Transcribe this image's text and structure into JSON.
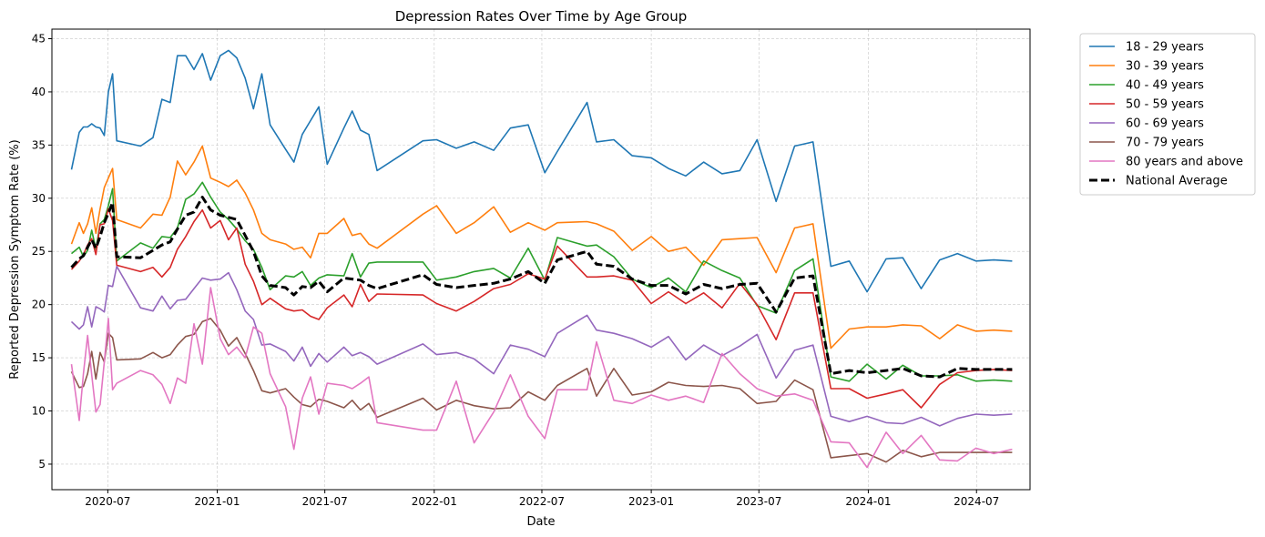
{
  "chart_data": {
    "type": "line",
    "title": "Depression Rates Over Time by Age Group",
    "xlabel": "Date",
    "ylabel": "Reported Depression Symptom Rate (%)",
    "xlim": [
      "2020-03-29",
      "2024-09-29"
    ],
    "ylim": [
      2.6,
      45.9
    ],
    "x_ticks": [
      "2020-07",
      "2021-01",
      "2021-07",
      "2022-01",
      "2022-07",
      "2023-01",
      "2023-07",
      "2024-01",
      "2024-07"
    ],
    "y_ticks": [
      5,
      10,
      15,
      20,
      25,
      30,
      35,
      40,
      45
    ],
    "grid": true,
    "legend_position": "outside-top-right",
    "x": [
      "2020-05-01",
      "2020-05-14",
      "2020-05-21",
      "2020-05-28",
      "2020-06-04",
      "2020-06-11",
      "2020-06-18",
      "2020-06-25",
      "2020-07-02",
      "2020-07-09",
      "2020-07-16",
      "2020-08-25",
      "2020-09-15",
      "2020-09-30",
      "2020-10-14",
      "2020-10-26",
      "2020-11-09",
      "2020-11-23",
      "2020-12-07",
      "2020-12-21",
      "2021-01-06",
      "2021-01-20",
      "2021-02-03",
      "2021-02-17",
      "2021-03-03",
      "2021-03-17",
      "2021-03-31",
      "2021-04-26",
      "2021-05-10",
      "2021-05-24",
      "2021-06-07",
      "2021-06-21",
      "2021-07-05",
      "2021-08-02",
      "2021-08-16",
      "2021-08-30",
      "2021-09-13",
      "2021-09-27",
      "2021-12-13",
      "2022-01-05",
      "2022-02-07",
      "2022-03-09",
      "2022-04-11",
      "2022-05-09",
      "2022-06-08",
      "2022-07-06",
      "2022-07-27",
      "2022-09-15",
      "2022-10-01",
      "2022-10-30",
      "2022-11-30",
      "2023-01-01",
      "2023-01-30",
      "2023-02-28",
      "2023-03-30",
      "2023-04-30",
      "2023-05-30",
      "2023-06-28",
      "2023-07-30",
      "2023-08-30",
      "2023-09-30",
      "2023-10-30",
      "2023-11-30",
      "2023-12-30",
      "2024-01-31",
      "2024-02-28",
      "2024-03-30",
      "2024-04-30",
      "2024-05-30",
      "2024-06-30",
      "2024-07-30",
      "2024-08-30"
    ],
    "series": [
      {
        "name": "18 - 29 years",
        "color": "#1f77b4",
        "dashed": false,
        "values": [
          32.7,
          36.2,
          36.7,
          36.7,
          37.0,
          36.7,
          36.6,
          35.9,
          40.0,
          41.7,
          35.4,
          34.9,
          35.7,
          39.3,
          39.0,
          43.4,
          43.4,
          42.1,
          43.6,
          41.1,
          43.4,
          43.9,
          43.2,
          41.3,
          38.4,
          41.7,
          36.9,
          34.6,
          33.4,
          36.0,
          37.3,
          38.6,
          33.2,
          36.6,
          38.2,
          36.4,
          36.0,
          32.6,
          35.4,
          35.5,
          34.7,
          35.3,
          34.5,
          36.6,
          36.9,
          32.4,
          34.4,
          39.0,
          35.3,
          35.5,
          34.0,
          33.8,
          32.8,
          32.1,
          33.4,
          32.3,
          32.6,
          35.5,
          29.7,
          34.9,
          35.3,
          23.6,
          24.1,
          21.2,
          24.3,
          24.4,
          21.5,
          24.2,
          24.8,
          24.1,
          24.2,
          24.1
        ]
      },
      {
        "name": "30 - 39 years",
        "color": "#ff7f0e",
        "dashed": false,
        "values": [
          25.7,
          27.7,
          26.7,
          27.6,
          29.1,
          26.7,
          29.0,
          31.0,
          31.9,
          32.8,
          28.0,
          27.2,
          28.5,
          28.4,
          30.1,
          33.5,
          32.2,
          33.4,
          34.9,
          31.9,
          31.5,
          31.1,
          31.7,
          30.5,
          28.9,
          26.7,
          26.1,
          25.7,
          25.2,
          25.4,
          24.4,
          26.7,
          26.7,
          28.1,
          26.5,
          26.7,
          25.7,
          25.3,
          28.5,
          29.3,
          26.7,
          27.7,
          29.2,
          26.8,
          27.7,
          27.0,
          27.7,
          27.8,
          27.6,
          26.9,
          25.1,
          26.4,
          25.0,
          25.4,
          23.7,
          26.1,
          26.2,
          26.3,
          23.0,
          27.2,
          27.6,
          15.9,
          17.7,
          17.9,
          17.9,
          18.1,
          18.0,
          16.8,
          18.1,
          17.5,
          17.6,
          17.5
        ]
      },
      {
        "name": "40 - 49 years",
        "color": "#2ca02c",
        "dashed": false,
        "values": [
          24.8,
          25.4,
          24.5,
          25.1,
          27.0,
          25.2,
          27.6,
          28.0,
          29.3,
          30.9,
          24.1,
          25.8,
          25.3,
          26.4,
          26.3,
          27.2,
          29.9,
          30.4,
          31.5,
          30.1,
          28.7,
          28.0,
          27.1,
          26.0,
          25.2,
          23.5,
          21.4,
          22.7,
          22.6,
          23.1,
          21.8,
          22.5,
          22.8,
          22.7,
          24.8,
          22.6,
          23.9,
          24.0,
          24.0,
          22.3,
          22.6,
          23.1,
          23.4,
          22.5,
          25.3,
          22.3,
          26.3,
          25.5,
          25.6,
          24.5,
          22.4,
          21.6,
          22.5,
          21.2,
          24.1,
          23.2,
          22.5,
          19.9,
          19.2,
          23.2,
          24.3,
          13.2,
          12.8,
          14.4,
          13.0,
          14.3,
          13.3,
          13.3,
          13.4,
          12.8,
          12.9,
          12.8
        ]
      },
      {
        "name": "50 - 59 years",
        "color": "#d62728",
        "dashed": false,
        "values": [
          23.3,
          24.1,
          24.7,
          25.6,
          26.2,
          24.7,
          27.5,
          27.6,
          29.0,
          27.9,
          23.7,
          23.1,
          23.5,
          22.6,
          23.5,
          25.2,
          26.4,
          27.8,
          28.9,
          27.2,
          27.9,
          26.1,
          27.2,
          23.8,
          22.2,
          20.0,
          20.6,
          19.6,
          19.4,
          19.5,
          18.9,
          18.6,
          19.7,
          20.9,
          19.8,
          21.9,
          20.3,
          21.0,
          20.9,
          20.1,
          19.4,
          20.3,
          21.5,
          21.9,
          22.9,
          22.4,
          25.5,
          22.6,
          22.6,
          22.7,
          22.3,
          20.1,
          21.2,
          20.1,
          21.1,
          19.7,
          22.0,
          20.0,
          16.7,
          21.1,
          21.1,
          12.1,
          12.1,
          11.2,
          11.6,
          12.0,
          10.3,
          12.5,
          13.6,
          13.8,
          13.9,
          13.8
        ]
      },
      {
        "name": "60 - 69 years",
        "color": "#9467bd",
        "dashed": false,
        "values": [
          18.4,
          17.7,
          18.1,
          19.8,
          17.9,
          19.8,
          19.6,
          19.3,
          21.8,
          21.7,
          23.6,
          19.7,
          19.4,
          20.8,
          19.6,
          20.4,
          20.5,
          21.5,
          22.5,
          22.3,
          22.4,
          23.0,
          21.4,
          19.4,
          18.6,
          16.2,
          16.3,
          15.6,
          14.7,
          16.0,
          14.2,
          15.4,
          14.6,
          16.0,
          15.2,
          15.5,
          15.1,
          14.4,
          16.3,
          15.3,
          15.5,
          14.9,
          13.5,
          16.2,
          15.8,
          15.1,
          17.3,
          19.0,
          17.6,
          17.3,
          16.8,
          16.0,
          17.0,
          14.8,
          16.2,
          15.2,
          16.1,
          17.2,
          13.1,
          15.7,
          16.2,
          9.5,
          9.0,
          9.5,
          8.9,
          8.8,
          9.4,
          8.6,
          9.3,
          9.7,
          9.6,
          9.7
        ]
      },
      {
        "name": "70 - 79 years",
        "color": "#8c564b",
        "dashed": false,
        "values": [
          13.7,
          12.2,
          12.3,
          13.5,
          15.6,
          13.0,
          15.5,
          14.6,
          17.3,
          16.9,
          14.8,
          14.9,
          15.5,
          15.0,
          15.3,
          16.2,
          17.0,
          17.2,
          18.4,
          18.7,
          17.6,
          16.1,
          16.9,
          15.4,
          13.8,
          11.9,
          11.7,
          12.1,
          11.3,
          10.6,
          10.4,
          11.1,
          10.9,
          10.3,
          11.0,
          10.1,
          10.7,
          9.4,
          11.2,
          10.1,
          11.0,
          10.5,
          10.2,
          10.3,
          11.8,
          11.0,
          12.4,
          14.0,
          11.4,
          14.0,
          11.5,
          11.8,
          12.7,
          12.4,
          12.3,
          12.4,
          12.1,
          10.7,
          10.9,
          12.9,
          12.0,
          5.6,
          5.8,
          6.0,
          5.2,
          6.3,
          5.7,
          6.1,
          6.1,
          6.1,
          6.1,
          6.1
        ]
      },
      {
        "name": "80 years and above",
        "color": "#e377c2",
        "dashed": false,
        "values": [
          14.4,
          9.1,
          13.5,
          17.1,
          13.4,
          9.9,
          10.6,
          14.6,
          18.7,
          12.0,
          12.6,
          13.8,
          13.4,
          12.5,
          10.7,
          13.1,
          12.6,
          18.2,
          14.4,
          21.6,
          16.8,
          15.3,
          16.0,
          15.0,
          17.9,
          17.3,
          13.5,
          10.4,
          6.4,
          11.2,
          13.2,
          9.7,
          12.6,
          12.4,
          12.1,
          12.6,
          13.2,
          8.9,
          8.2,
          8.2,
          12.8,
          7.0,
          9.9,
          13.4,
          9.5,
          7.4,
          12.0,
          12.0,
          16.5,
          11.0,
          10.7,
          11.5,
          11.0,
          11.4,
          10.8,
          15.4,
          13.5,
          12.1,
          11.4,
          11.6,
          11.0,
          7.1,
          7.0,
          4.7,
          8.0,
          6.0,
          7.7,
          5.4,
          5.3,
          6.5,
          6.0,
          6.4
        ]
      },
      {
        "name": "National Average",
        "color": "#000000",
        "dashed": true,
        "values": [
          23.5,
          24.3,
          24.6,
          25.4,
          26.1,
          25.3,
          26.4,
          27.7,
          28.6,
          29.6,
          24.5,
          24.4,
          25.1,
          25.6,
          25.9,
          27.1,
          28.4,
          28.7,
          30.1,
          28.9,
          28.4,
          28.2,
          28.0,
          26.5,
          25.0,
          22.7,
          21.8,
          21.6,
          20.9,
          21.7,
          21.6,
          22.2,
          21.2,
          22.5,
          22.4,
          22.3,
          21.8,
          21.5,
          22.8,
          21.9,
          21.6,
          21.8,
          22.0,
          22.4,
          23.1,
          22.0,
          24.2,
          25.0,
          23.8,
          23.6,
          22.4,
          21.8,
          21.8,
          21.0,
          21.9,
          21.5,
          21.9,
          22.0,
          19.3,
          22.5,
          22.7,
          13.5,
          13.8,
          13.6,
          13.8,
          14.0,
          13.3,
          13.2,
          14.0,
          13.9,
          13.9,
          13.9
        ]
      }
    ]
  }
}
